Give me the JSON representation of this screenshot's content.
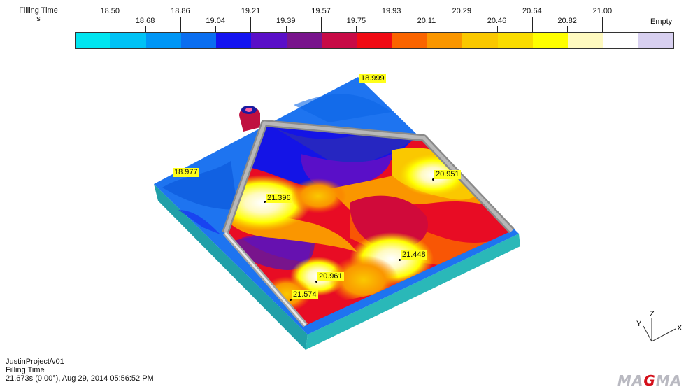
{
  "legend": {
    "title": "Filling Time",
    "unit": "s",
    "top_ticks": [
      "18.50",
      "18.86",
      "19.21",
      "19.57",
      "19.93",
      "20.29",
      "20.64",
      "21.00"
    ],
    "bottom_ticks": [
      "18.68",
      "19.04",
      "19.39",
      "19.75",
      "20.11",
      "20.46",
      "20.82"
    ],
    "empty_label": "Empty",
    "colors": [
      "#00e5f0",
      "#00c2f5",
      "#0096f5",
      "#0a6ef0",
      "#1414f0",
      "#5a0fc8",
      "#78148c",
      "#c80a46",
      "#f00a14",
      "#fa6400",
      "#fa9600",
      "#fac800",
      "#fadc00",
      "#ffff00",
      "#fffac0",
      "#ffffff",
      "#d8d0f0"
    ]
  },
  "probes": [
    {
      "label": "18.999"
    },
    {
      "label": "18.977"
    },
    {
      "label": "20.951"
    },
    {
      "label": "21.396"
    },
    {
      "label": "21.448"
    },
    {
      "label": "20.961"
    },
    {
      "label": "21.574"
    }
  ],
  "axes": {
    "x": "X",
    "y": "Y",
    "z": "Z"
  },
  "footer": {
    "project": "JustinProject/v01",
    "result": "Filling Time",
    "timestamp": "21.673s (0.00°), Aug 29, 2014 05:56:52 PM"
  },
  "logo": {
    "pre": "MA",
    "g": "G",
    "post": "MA"
  }
}
